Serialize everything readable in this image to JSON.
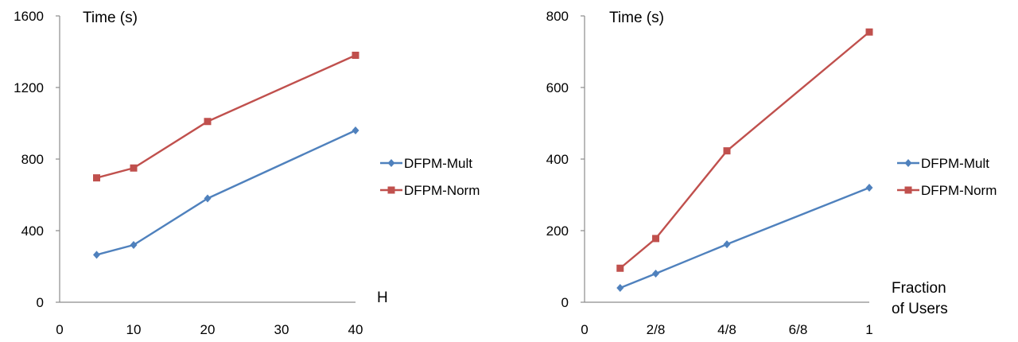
{
  "chart_data": [
    {
      "type": "line",
      "title": "",
      "ylabel": "Time (s)",
      "xlabel": "H",
      "x": [
        5,
        10,
        20,
        40
      ],
      "xlim": [
        0,
        40
      ],
      "xticks": [
        "0",
        "10",
        "20",
        "30",
        "40"
      ],
      "ylim": [
        0,
        1600
      ],
      "yticks": [
        "0",
        "400",
        "800",
        "1200",
        "1600"
      ],
      "grid": false,
      "legend_position": "right",
      "series": [
        {
          "name": "DFPM-Mult",
          "color": "#4f81bd",
          "marker": "diamond",
          "values": [
            265,
            320,
            580,
            960
          ]
        },
        {
          "name": "DFPM-Norm",
          "color": "#c0504d",
          "marker": "square",
          "values": [
            695,
            750,
            1010,
            1380
          ]
        }
      ]
    },
    {
      "type": "line",
      "title": "",
      "ylabel": "Time (s)",
      "xlabel": [
        "Fraction",
        "of Users"
      ],
      "x": [
        0.125,
        0.25,
        0.5,
        1
      ],
      "xlim": [
        0,
        1
      ],
      "xticks": [
        "0",
        "2/8",
        "4/8",
        "6/8",
        "1"
      ],
      "ylim": [
        0,
        800
      ],
      "yticks": [
        "0",
        "200",
        "400",
        "600",
        "800"
      ],
      "grid": false,
      "legend_position": "right",
      "series": [
        {
          "name": "DFPM-Mult",
          "color": "#4f81bd",
          "marker": "diamond",
          "values": [
            40,
            80,
            162,
            320
          ]
        },
        {
          "name": "DFPM-Norm",
          "color": "#c0504d",
          "marker": "square",
          "values": [
            95,
            178,
            423,
            755
          ]
        }
      ]
    }
  ]
}
